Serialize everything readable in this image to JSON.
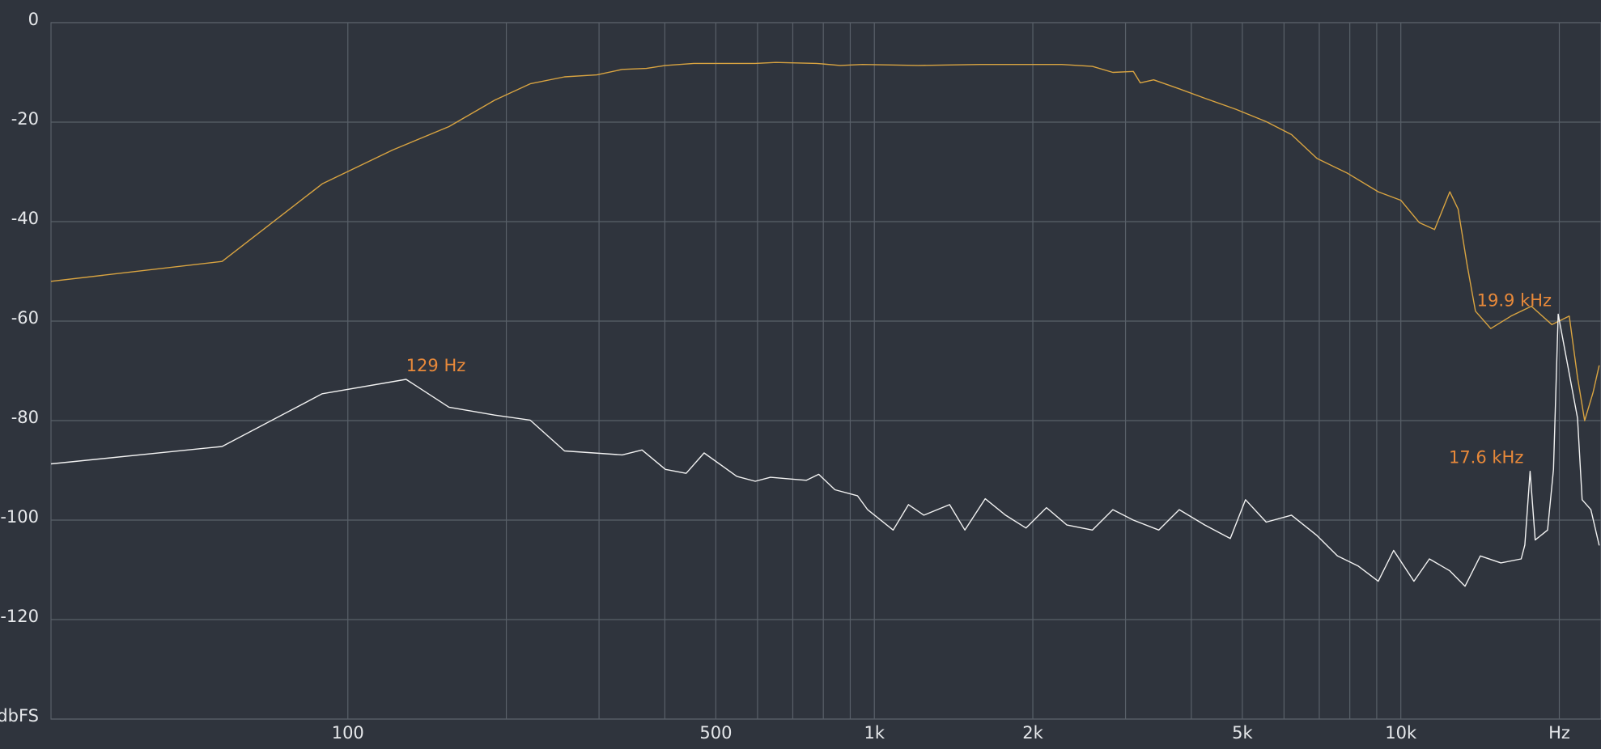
{
  "chart_data": {
    "type": "line",
    "log_x": true,
    "grid": true,
    "background": "#2f343d",
    "grid_color": "#596069",
    "text_color": "#e6e8eb",
    "annotation_color": "#e8893a",
    "xlim": [
      27.3,
      24000
    ],
    "ylim": [
      -140,
      0
    ],
    "xticks": [
      100,
      500,
      {
        "value": 1000,
        "label": "1k"
      },
      {
        "value": 2000,
        "label": "2k"
      },
      {
        "value": 5000,
        "label": "5k"
      },
      {
        "value": 10000,
        "label": "10k"
      },
      {
        "value": 20000,
        "label": "Hz"
      }
    ],
    "xminor": [
      200,
      300,
      400,
      600,
      700,
      800,
      900,
      3000,
      4000,
      6000,
      7000,
      8000,
      9000
    ],
    "yticks": [
      0,
      -20,
      -40,
      -60,
      -80,
      -100,
      -120,
      {
        "value": -140,
        "label": "dbFS"
      }
    ],
    "series": [
      {
        "color": "#d9a441",
        "x": [
          27.3,
          57.7,
          89.4,
          121.7,
          155.6,
          190,
          222,
          258,
          297,
          332,
          369,
          401,
          454,
          520,
          594,
          650,
          777,
          861,
          950,
          1213,
          1588,
          1898,
          2270,
          2596,
          2838,
          3104,
          3200,
          3393,
          3794,
          4244,
          4855,
          5550,
          6200,
          6930,
          7925,
          9060,
          10000,
          10840,
          11590,
          12390,
          12850,
          13370,
          13860,
          14820,
          16190,
          17700,
          19360,
          20890,
          21660,
          22340,
          23170,
          23810
        ],
        "values": [
          -52,
          -48,
          -32.4,
          -25.6,
          -20.9,
          -15.6,
          -12.3,
          -10.9,
          -10.5,
          -9.4,
          -9.2,
          -8.6,
          -8.2,
          -8.2,
          -8.2,
          -8,
          -8.2,
          -8.6,
          -8.4,
          -8.6,
          -8.4,
          -8.4,
          -8.4,
          -8.8,
          -10,
          -9.8,
          -12.1,
          -11.5,
          -13.3,
          -15.2,
          -17.4,
          -19.9,
          -22.5,
          -27.3,
          -30.3,
          -34,
          -35.7,
          -40.2,
          -41.6,
          -34,
          -37.5,
          -48.8,
          -58,
          -61.5,
          -59,
          -57,
          -60.7,
          -59,
          -71.3,
          -80,
          -74.4,
          -68.9
        ]
      },
      {
        "color": "#f2f2f2",
        "x": [
          27.3,
          57.7,
          89.4,
          129,
          155.6,
          190,
          222,
          258,
          332,
          362,
          401,
          439,
          475,
          548,
          594,
          635,
          704,
          743,
          784,
          842,
          929,
          971,
          1086,
          1161,
          1242,
          1390,
          1486,
          1624,
          1775,
          1941,
          2123,
          2322,
          2596,
          2838,
          3104,
          3470,
          3794,
          4244,
          4744,
          5070,
          5550,
          6200,
          6930,
          7580,
          8290,
          9060,
          9690,
          10590,
          11330,
          12390,
          13240,
          14160,
          15490,
          16930,
          17200,
          17600,
          18000,
          19000,
          19500,
          19900,
          21660,
          22100,
          22960,
          23810
        ],
        "values": [
          -88.7,
          -85.2,
          -74.6,
          -71.7,
          -77.3,
          -78.9,
          -79.9,
          -86.1,
          -86.9,
          -85.9,
          -89.8,
          -90.6,
          -86.5,
          -91.2,
          -92.2,
          -91.4,
          -91.8,
          -92,
          -90.8,
          -93.9,
          -95.1,
          -97.9,
          -102,
          -96.9,
          -99,
          -96.9,
          -102,
          -95.7,
          -99,
          -101.6,
          -97.5,
          -101,
          -102,
          -97.9,
          -100,
          -102,
          -97.9,
          -101,
          -103.7,
          -95.9,
          -100.4,
          -99,
          -103.1,
          -107.2,
          -109.2,
          -112.3,
          -106.1,
          -112.3,
          -107.8,
          -110.2,
          -113.3,
          -107.2,
          -108.6,
          -107.8,
          -105,
          -90.2,
          -104,
          -102,
          -89.8,
          -58.6,
          -79.5,
          -95.9,
          -97.9,
          -105.1
        ]
      }
    ],
    "annotations": [
      {
        "text": "129 Hz",
        "x": 129,
        "y": -71.7
      },
      {
        "text": "17.6 kHz",
        "x": 17600,
        "y": -90.2
      },
      {
        "text": "19.9 kHz",
        "x": 19900,
        "y": -58.6
      }
    ]
  }
}
